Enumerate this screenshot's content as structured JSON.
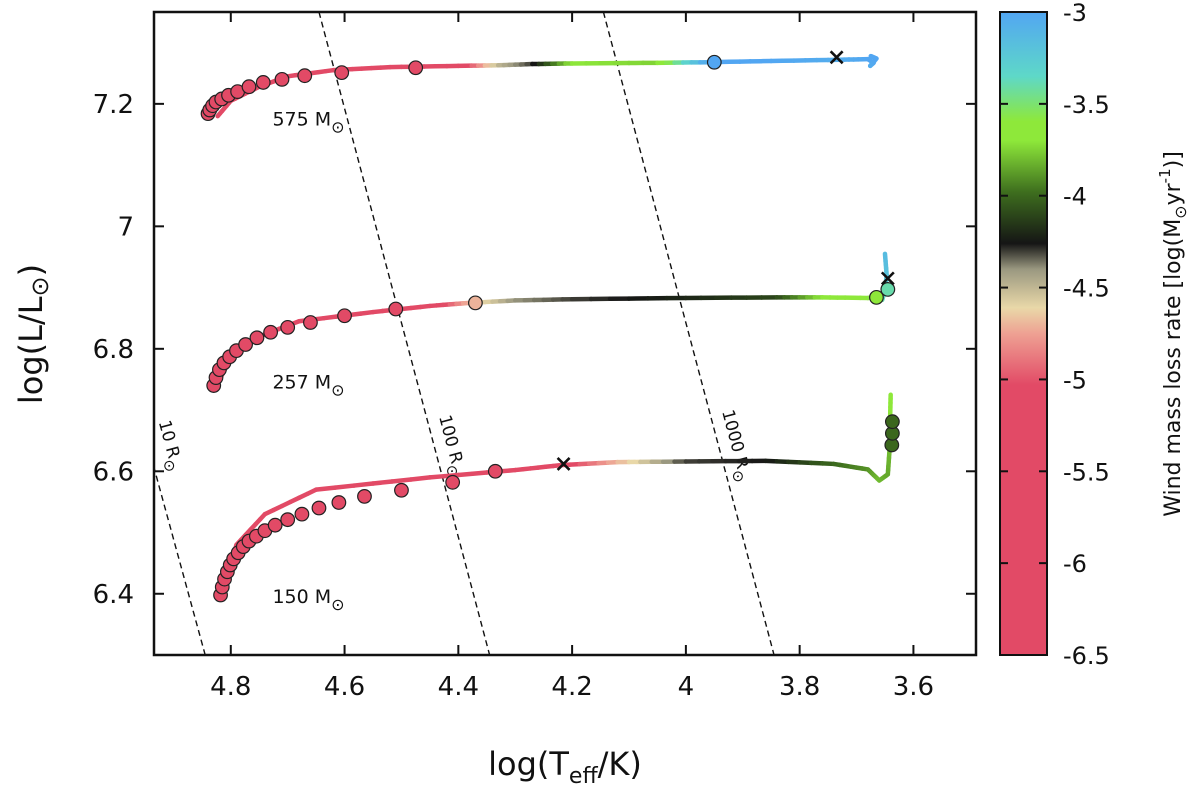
{
  "chart_data": {
    "type": "scatter",
    "title": "",
    "xlabel": "log(T_eff/K)",
    "ylabel": "log(L/L⊙)",
    "xlim": [
      4.935,
      3.49
    ],
    "ylim": [
      6.3,
      7.35
    ],
    "x_ticks": [
      "4.8",
      "4.6",
      "4.4",
      "4.2",
      "4",
      "3.8",
      "3.6"
    ],
    "y_ticks": [
      "6.4",
      "6.6",
      "6.8",
      "7",
      "7.2"
    ],
    "colorbar": {
      "label": "Wind mass loss rate [log(M⊙yr⁻¹)]",
      "range": [
        -6.5,
        -3
      ],
      "ticks": [
        "-3",
        "-3.5",
        "-4",
        "-4.5",
        "-5",
        "-5.5",
        "-6",
        "-6.5"
      ],
      "colors": {
        "c_low": "#e24a66",
        "c_mid1": "#eea193",
        "c_mid2": "#e9d8a8",
        "c_mid3": "#9a9880",
        "c_dark": "#151515",
        "c_olive": "#3e6e1e",
        "c_green": "#8ee83a",
        "c_cyan": "#5ed8c8",
        "c_blue": "#52a6f2"
      }
    },
    "radius_lines": [
      {
        "label": "10 R⊙",
        "main": "10 R",
        "sym": "⊙",
        "points": [
          [
            4.945,
            6.64
          ],
          [
            4.845,
            6.3
          ]
        ],
        "label_at": [
          4.915,
          6.64
        ]
      },
      {
        "label": "100 R⊙",
        "main": "100 R",
        "sym": "⊙",
        "points": [
          [
            4.645,
            7.35
          ],
          [
            4.345,
            6.3
          ]
        ],
        "label_at": [
          4.42,
          6.64
        ]
      },
      {
        "label": "1000 R⊙",
        "main": "1000 R",
        "sym": "⊙",
        "points": [
          [
            4.145,
            7.35
          ],
          [
            3.845,
            6.3
          ]
        ],
        "label_at": [
          3.92,
          6.64
        ]
      }
    ],
    "series": [
      {
        "name": "575 M⊙",
        "mass_main": "575 M",
        "mass_sym": "⊙",
        "label_at": [
          4.6,
          7.165
        ],
        "track": [
          [
            4.823,
            7.18,
            -6.2
          ],
          [
            4.8,
            7.205,
            -6.1
          ],
          [
            4.75,
            7.228,
            -6.0
          ],
          [
            4.7,
            7.245,
            -5.5
          ],
          [
            4.62,
            7.255,
            -5.0
          ],
          [
            4.52,
            7.26,
            -5.2
          ],
          [
            4.4,
            7.262,
            -5.2
          ],
          [
            4.33,
            7.263,
            -4.5
          ],
          [
            4.27,
            7.265,
            -4.3
          ],
          [
            4.2,
            7.266,
            -3.7
          ],
          [
            4.05,
            7.267,
            -3.75
          ],
          [
            3.96,
            7.268,
            -3.0
          ],
          [
            3.85,
            7.27,
            -3.0
          ],
          [
            3.73,
            7.272,
            -3.05
          ],
          [
            3.68,
            7.273,
            -3.0
          ],
          [
            3.67,
            7.267,
            -3.0
          ],
          [
            3.676,
            7.262,
            -3.05
          ],
          [
            3.665,
            7.274,
            -3.0
          ],
          [
            3.675,
            7.278,
            -3.0
          ]
        ],
        "dots": [
          [
            4.84,
            7.184,
            -6.5
          ],
          [
            4.837,
            7.19,
            -6.5
          ],
          [
            4.832,
            7.197,
            -6.5
          ],
          [
            4.826,
            7.203,
            -6.5
          ],
          [
            4.816,
            7.208,
            -6.5
          ],
          [
            4.804,
            7.214,
            -6.5
          ],
          [
            4.788,
            7.22,
            -6.5
          ],
          [
            4.768,
            7.228,
            -6.5
          ],
          [
            4.743,
            7.235,
            -6.5
          ],
          [
            4.71,
            7.24,
            -6.5
          ],
          [
            4.67,
            7.246,
            -5.3
          ],
          [
            4.605,
            7.251,
            -5.0
          ],
          [
            4.475,
            7.259,
            -6.5
          ],
          [
            3.95,
            7.268,
            -3.0
          ]
        ],
        "cross": [
          3.735,
          7.276
        ]
      },
      {
        "name": "257 M⊙",
        "mass_main": "257 M",
        "mass_sym": "⊙",
        "label_at": [
          4.6,
          6.735
        ],
        "track": [
          [
            4.828,
            6.735,
            -6.0
          ],
          [
            4.8,
            6.785,
            -6.0
          ],
          [
            4.75,
            6.82,
            -5.8
          ],
          [
            4.68,
            6.845,
            -5.7
          ],
          [
            4.55,
            6.86,
            -5.6
          ],
          [
            4.45,
            6.87,
            -5.2
          ],
          [
            4.38,
            6.875,
            -4.7
          ],
          [
            4.3,
            6.879,
            -4.4
          ],
          [
            4.2,
            6.881,
            -4.3
          ],
          [
            4.0,
            6.883,
            -4.2
          ],
          [
            3.84,
            6.884,
            -4.1
          ],
          [
            3.76,
            6.884,
            -3.7
          ],
          [
            3.68,
            6.883,
            -3.6
          ],
          [
            3.66,
            6.885,
            -3.5
          ],
          [
            3.655,
            6.88,
            -3.4
          ],
          [
            3.65,
            6.895,
            -3.3
          ],
          [
            3.647,
            6.92,
            -3.2
          ],
          [
            3.65,
            6.955,
            -3.15
          ]
        ],
        "dots": [
          [
            4.83,
            6.74,
            -6.5
          ],
          [
            4.826,
            6.753,
            -6.5
          ],
          [
            4.82,
            6.766,
            -6.5
          ],
          [
            4.812,
            6.777,
            -6.5
          ],
          [
            4.802,
            6.787,
            -6.5
          ],
          [
            4.79,
            6.797,
            -6.5
          ],
          [
            4.774,
            6.807,
            -6.5
          ],
          [
            4.754,
            6.818,
            -6.5
          ],
          [
            4.73,
            6.827,
            -6.5
          ],
          [
            4.7,
            6.835,
            -6.5
          ],
          [
            4.66,
            6.843,
            -6.5
          ],
          [
            4.6,
            6.854,
            -6.5
          ],
          [
            4.51,
            6.865,
            -6.5
          ],
          [
            4.37,
            6.875,
            -4.7
          ],
          [
            3.665,
            6.884,
            -3.6
          ],
          [
            3.645,
            6.897,
            -3.4
          ]
        ],
        "cross": [
          3.645,
          6.915
        ]
      },
      {
        "name": "150 M⊙",
        "mass_main": "150 M",
        "mass_sym": "⊙",
        "label_at": [
          4.6,
          6.385
        ],
        "track": [
          [
            4.818,
            6.398,
            -6.2
          ],
          [
            4.79,
            6.48,
            -6.1
          ],
          [
            4.74,
            6.53,
            -6.0
          ],
          [
            4.65,
            6.57,
            -5.8
          ],
          [
            4.45,
            6.59,
            -5.6
          ],
          [
            4.3,
            6.602,
            -5.5
          ],
          [
            4.22,
            6.61,
            -5.1
          ],
          [
            4.12,
            6.615,
            -4.7
          ],
          [
            4.0,
            6.616,
            -4.3
          ],
          [
            3.86,
            6.617,
            -4.25
          ],
          [
            3.74,
            6.612,
            -4.0
          ],
          [
            3.68,
            6.603,
            -3.9
          ],
          [
            3.66,
            6.585,
            -3.8
          ],
          [
            3.645,
            6.595,
            -3.85
          ],
          [
            3.642,
            6.635,
            -3.8
          ],
          [
            3.641,
            6.685,
            -3.75
          ],
          [
            3.64,
            6.725,
            -3.6
          ]
        ],
        "dots": [
          [
            4.818,
            6.398,
            -6.5
          ],
          [
            4.815,
            6.411,
            -6.5
          ],
          [
            4.811,
            6.424,
            -6.5
          ],
          [
            4.806,
            6.436,
            -6.5
          ],
          [
            4.801,
            6.447,
            -6.5
          ],
          [
            4.795,
            6.457,
            -6.5
          ],
          [
            4.787,
            6.467,
            -6.5
          ],
          [
            4.778,
            6.477,
            -6.5
          ],
          [
            4.768,
            6.486,
            -6.5
          ],
          [
            4.755,
            6.494,
            -6.5
          ],
          [
            4.74,
            6.503,
            -6.5
          ],
          [
            4.722,
            6.512,
            -6.5
          ],
          [
            4.7,
            6.521,
            -6.5
          ],
          [
            4.675,
            6.53,
            -6.5
          ],
          [
            4.645,
            6.54,
            -6.5
          ],
          [
            4.61,
            6.549,
            -6.5
          ],
          [
            4.565,
            6.559,
            -6.5
          ],
          [
            4.5,
            6.569,
            -6.5
          ],
          [
            4.41,
            6.582,
            -6.5
          ],
          [
            4.335,
            6.6,
            -6.5
          ],
          [
            3.638,
            6.643,
            -4.0
          ],
          [
            3.637,
            6.662,
            -4.0
          ],
          [
            3.637,
            6.681,
            -4.0
          ]
        ],
        "cross": [
          4.215,
          6.612
        ]
      }
    ]
  }
}
